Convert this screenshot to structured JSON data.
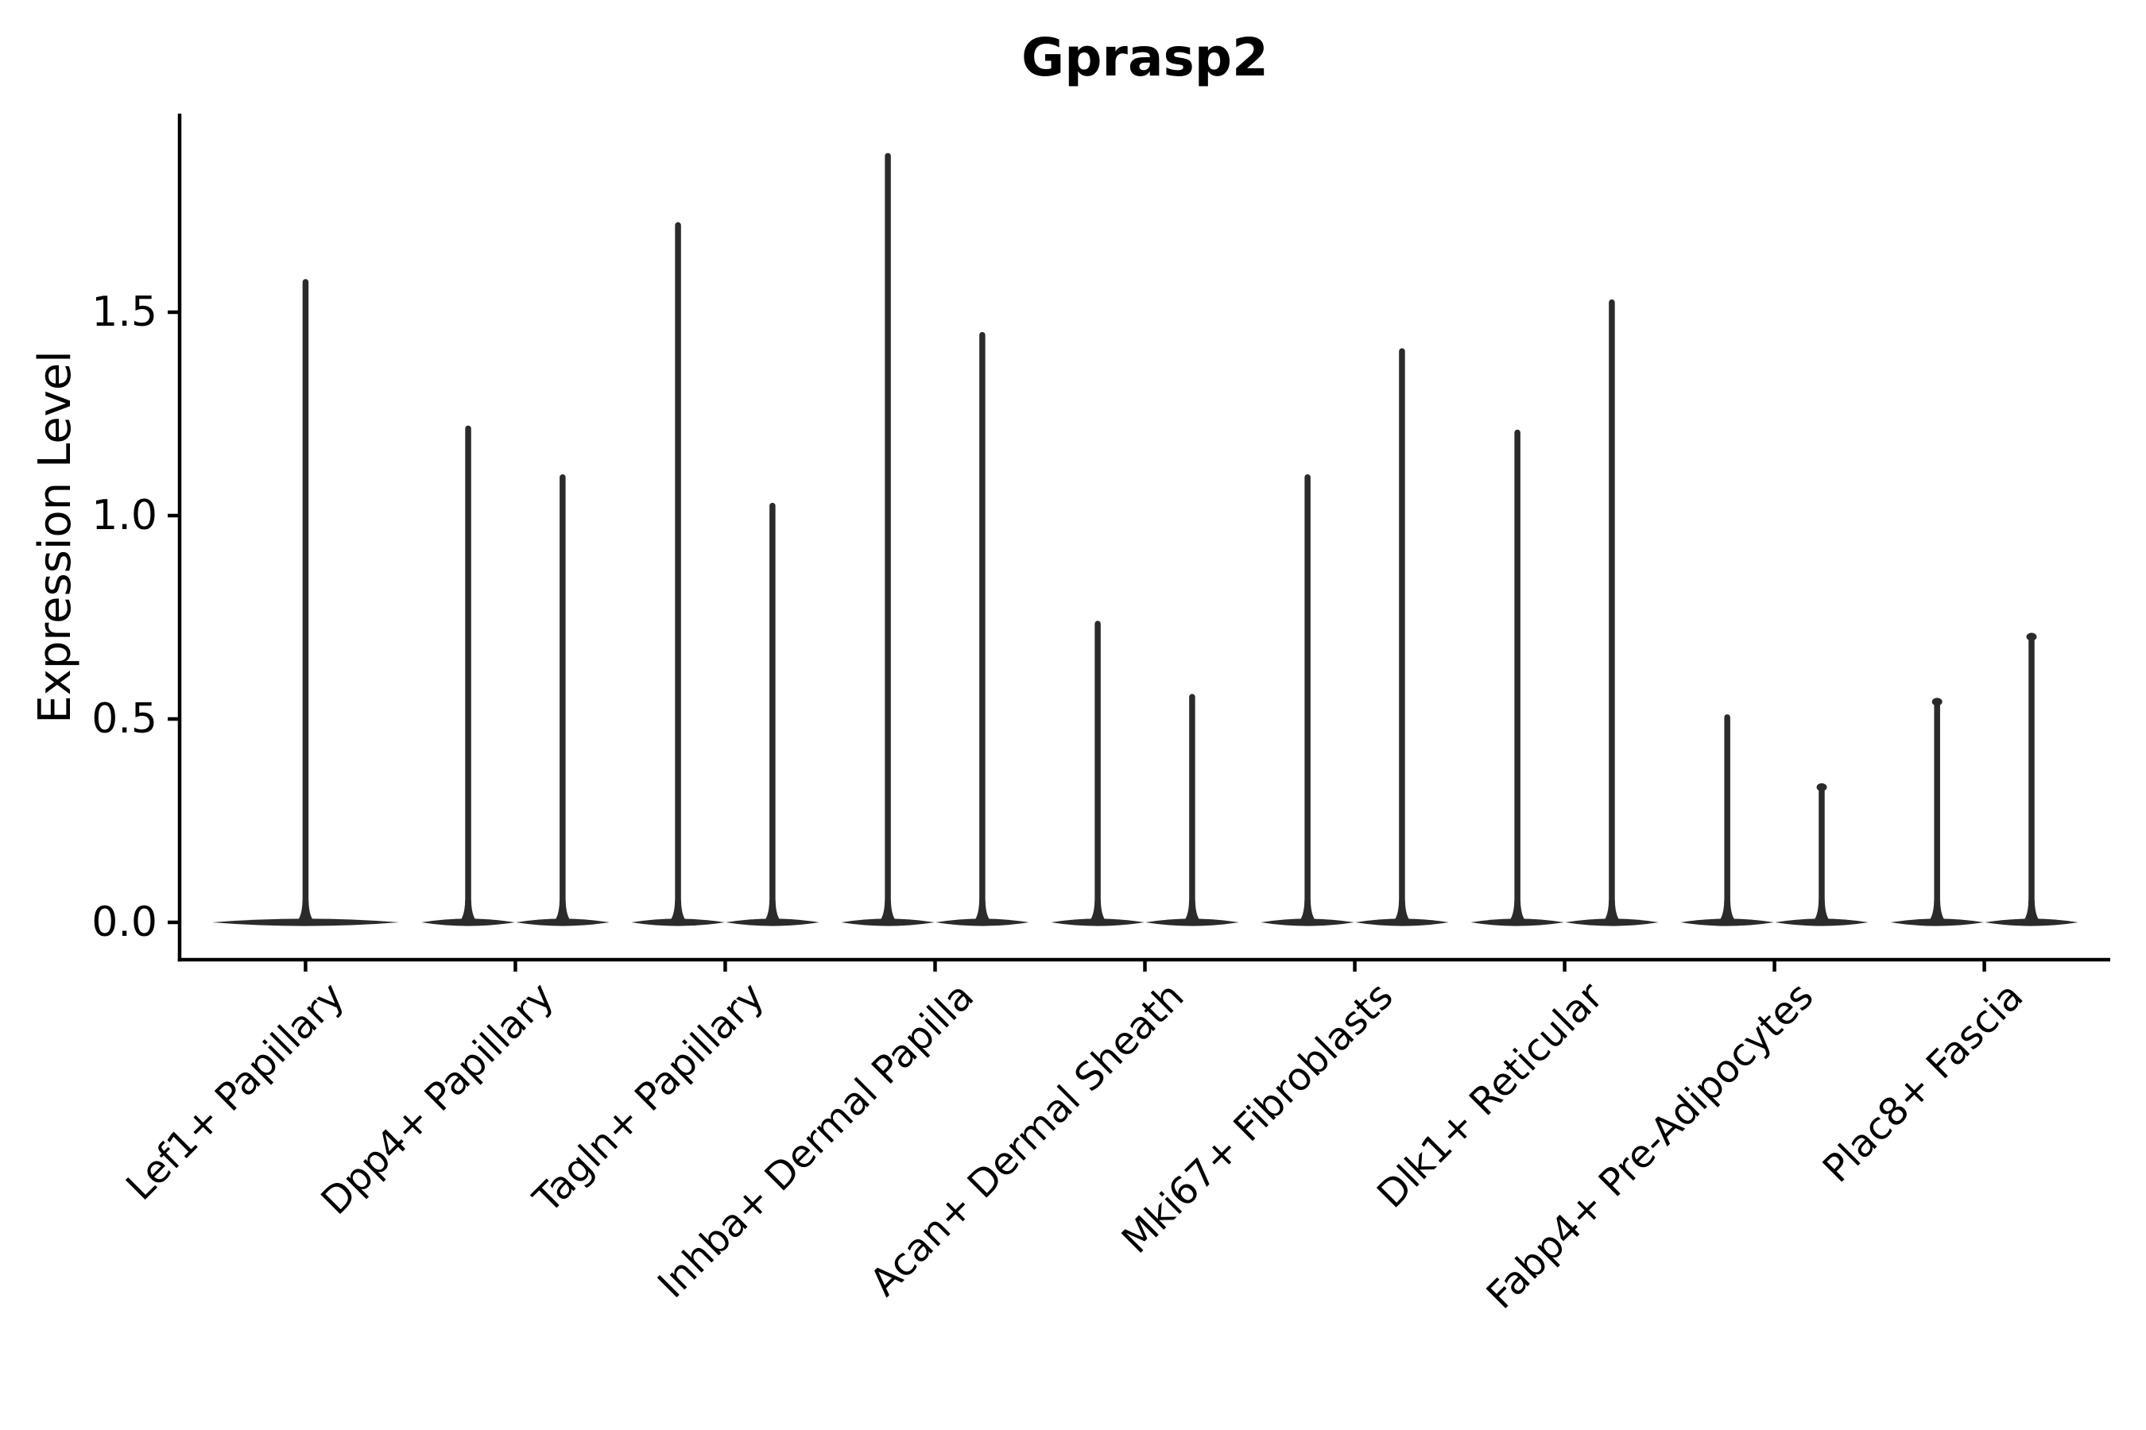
{
  "figure": {
    "background": "#ffffff"
  },
  "chart_data": {
    "type": "violin",
    "title": "Gprasp2",
    "xlabel": "",
    "ylabel": "Expression Level",
    "categories": [
      "Lef1+ Papillary",
      "Dpp4+ Papillary",
      "Tagln+ Papillary",
      "Inhba+ Dermal Papilla",
      "Acan+ Dermal Sheath",
      "Mki67+ Fibroblasts",
      "Dlk1+ Reticular",
      "Fabp4+ Pre-Adipocytes",
      "Plac8+ Fascia"
    ],
    "violins_note": "Each category shows thin violin(s): dense mass at expression 0 (horizontal lens) with a thin spike up to the max expression value. Category 1 has a single centered violin; all others have two side-by-side violins.",
    "violin_max_values": [
      [
        1.58
      ],
      [
        1.22,
        1.1
      ],
      [
        1.72,
        1.03
      ],
      [
        1.89,
        1.45
      ],
      [
        0.74,
        0.56
      ],
      [
        1.1,
        1.41
      ],
      [
        1.21,
        1.53
      ],
      [
        0.51,
        0.34
      ],
      [
        0.55,
        0.71
      ]
    ],
    "violin_top_knobs": [
      [
        false
      ],
      [
        false,
        false
      ],
      [
        false,
        false
      ],
      [
        false,
        false
      ],
      [
        false,
        false
      ],
      [
        false,
        false
      ],
      [
        false,
        false
      ],
      [
        false,
        true
      ],
      [
        true,
        true
      ]
    ],
    "baseline_value": 0.0,
    "ytick_values": [
      0.0,
      0.5,
      1.0,
      1.5
    ],
    "ytick_labels": [
      "0.0",
      "0.5",
      "1.0",
      "1.5"
    ],
    "ylim": [
      -0.095,
      1.985
    ],
    "grid": false,
    "legend": null,
    "violin_color": "#2b2b2b",
    "axis_color": "#000000",
    "text_color": "#000000",
    "background": "#ffffff"
  }
}
